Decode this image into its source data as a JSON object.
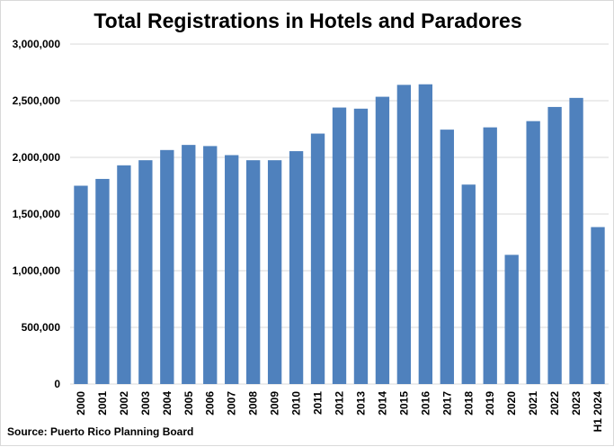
{
  "chart_data": {
    "type": "bar",
    "title": "Total Registrations in Hotels and Paradores",
    "source_note": "Source: Puerto Rico Planning Board",
    "categories": [
      "2000",
      "2001",
      "2002",
      "2003",
      "2004",
      "2005",
      "2006",
      "2007",
      "2008",
      "2009",
      "2010",
      "2011",
      "2012",
      "2013",
      "2014",
      "2015",
      "2016",
      "2017",
      "2018",
      "2019",
      "2020",
      "2021",
      "2022",
      "2023",
      "H1 2024"
    ],
    "values": [
      1750000,
      1810000,
      1930000,
      1975000,
      2065000,
      2110000,
      2100000,
      2020000,
      1975000,
      1975000,
      2055000,
      2210000,
      2440000,
      2430000,
      2535000,
      2640000,
      2645000,
      2245000,
      1760000,
      2265000,
      1140000,
      2320000,
      2445000,
      2525000,
      1385000
    ],
    "ylim": [
      0,
      3000000
    ],
    "yticks": [
      "0",
      "500,000",
      "1,000,000",
      "1,500,000",
      "2,000,000",
      "2,500,000",
      "3,000,000"
    ],
    "ytick_values": [
      0,
      500000,
      1000000,
      1500000,
      2000000,
      2500000,
      3000000
    ],
    "grid": true,
    "bar_color": "#4f81bd",
    "grid_color": "#d9d9d9"
  }
}
